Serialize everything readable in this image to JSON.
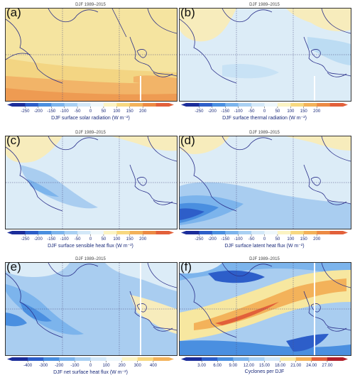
{
  "panels": [
    {
      "label": "(a)",
      "subtitle": "DJF 1989–2015",
      "colorbar": {
        "title": "DJF surface solar radiation (W m⁻²)",
        "ticks": [
          "-250",
          "-200",
          "-150",
          "-100",
          "-50",
          "0",
          "50",
          "100",
          "150",
          "200"
        ],
        "colors": [
          "#1b2d9a",
          "#2d5ec9",
          "#4a8fe0",
          "#7cb4ec",
          "#a9d0f3",
          "#d3e8f8",
          "#eef7fb",
          "#fbf3c2",
          "#f7d880",
          "#f3b25a",
          "#ec8a44",
          "#e2603a"
        ]
      }
    },
    {
      "label": "(b)",
      "subtitle": "DJF 1989–2015",
      "colorbar": {
        "title": "DJF surface thermal radiation (W m⁻²)",
        "ticks": [
          "-250",
          "-200",
          "-150",
          "-100",
          "-50",
          "0",
          "50",
          "100",
          "150",
          "200"
        ],
        "colors": [
          "#1b2d9a",
          "#2d5ec9",
          "#4a8fe0",
          "#7cb4ec",
          "#a9d0f3",
          "#d3e8f8",
          "#eef7fb",
          "#fbf3c2",
          "#f7d880",
          "#f3b25a",
          "#ec8a44",
          "#e2603a"
        ]
      }
    },
    {
      "label": "(c)",
      "subtitle": "DJF 1989–2015",
      "colorbar": {
        "title": "DJF surface sensible heat flux (W m⁻²)",
        "ticks": [
          "-250",
          "-200",
          "-150",
          "-100",
          "-50",
          "0",
          "50",
          "100",
          "150",
          "200"
        ],
        "colors": [
          "#1b2d9a",
          "#2d5ec9",
          "#4a8fe0",
          "#7cb4ec",
          "#a9d0f3",
          "#d3e8f8",
          "#eef7fb",
          "#fbf3c2",
          "#f7d880",
          "#f3b25a",
          "#ec8a44",
          "#e2603a"
        ]
      }
    },
    {
      "label": "(d)",
      "subtitle": "DJF 1989–2015",
      "colorbar": {
        "title": "DJF surface latent heat flux (W m⁻²)",
        "ticks": [
          "-250",
          "-200",
          "-150",
          "-100",
          "-50",
          "0",
          "50",
          "100",
          "150",
          "200"
        ],
        "colors": [
          "#1b2d9a",
          "#2d5ec9",
          "#4a8fe0",
          "#7cb4ec",
          "#a9d0f3",
          "#d3e8f8",
          "#eef7fb",
          "#fbf3c2",
          "#f7d880",
          "#f3b25a",
          "#ec8a44",
          "#e2603a"
        ]
      }
    },
    {
      "label": "(e)",
      "subtitle": "DJF 1989–2015",
      "colorbar": {
        "title": "DJF net surface heat flux (W m⁻²)",
        "ticks": [
          "-400",
          "-300",
          "-200",
          "-100",
          "0",
          "100",
          "200",
          "300",
          "400"
        ],
        "colors": [
          "#1b2d9a",
          "#2d5ec9",
          "#4a8fe0",
          "#7cb4ec",
          "#a9d0f3",
          "#d3e8f8",
          "#eef7fb",
          "#fbf3c2",
          "#f7d880",
          "#f3b25a"
        ]
      }
    },
    {
      "label": "(f)",
      "subtitle": "DJF 1989–2015",
      "colorbar": {
        "title": "Cyclones per DJF",
        "ticks": [
          "3.00",
          "6.00",
          "9.00",
          "12.00",
          "15.00",
          "18.00",
          "21.00",
          "24.00",
          "27.00"
        ],
        "colors": [
          "#1b2d9a",
          "#2d5ec9",
          "#4a8fe0",
          "#7cb4ec",
          "#a9d0f3",
          "#d3e8f8",
          "#f7e7a0",
          "#f3b25a",
          "#e2603a",
          "#b11f2a"
        ]
      }
    }
  ],
  "colors": {
    "land_line": "#2a2f8a",
    "grid_line": "#4d4d80",
    "warm_base": "#f6e6a4",
    "pale_blue": "#dcecf7",
    "mid_blue": "#a9cdf0",
    "deep_blue": "#2d5ec9"
  }
}
